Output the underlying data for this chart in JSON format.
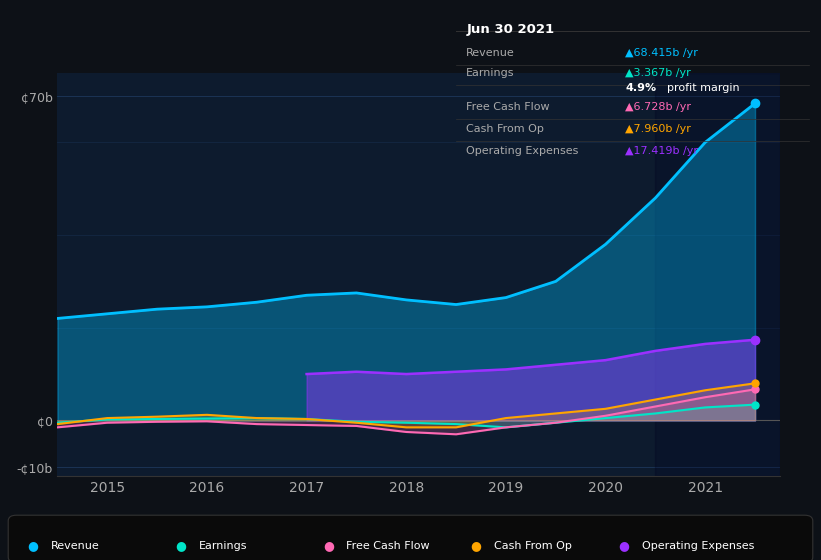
{
  "bg_color": "#0d1117",
  "plot_bg_color": "#0d1b2e",
  "grid_color": "#1e3a5f",
  "title_box": {
    "date": "Jun 30 2021",
    "rows": [
      {
        "label": "Revenue",
        "value": "▲68.415b /yr",
        "color": "#00bfff"
      },
      {
        "label": "Earnings",
        "value": "▲3.367b /yr",
        "color": "#00e5c8"
      },
      {
        "label": "",
        "value": "4.9% profit margin",
        "color": "#ffffff"
      },
      {
        "label": "Free Cash Flow",
        "value": "▲6.728b /yr",
        "color": "#ff69b4"
      },
      {
        "label": "Cash From Op",
        "value": "▲7.960b /yr",
        "color": "#ffa500"
      },
      {
        "label": "Operating Expenses",
        "value": "▲17.419b /yr",
        "color": "#9b30ff"
      }
    ]
  },
  "years": [
    2014.5,
    2015.0,
    2015.5,
    2016.0,
    2016.5,
    2017.0,
    2017.5,
    2018.0,
    2018.5,
    2019.0,
    2019.5,
    2020.0,
    2020.5,
    2021.0,
    2021.5
  ],
  "revenue": [
    22,
    23,
    24,
    24.5,
    25.5,
    27,
    27.5,
    26,
    25,
    26.5,
    30,
    38,
    48,
    60,
    68.4
  ],
  "earnings": [
    -0.5,
    0.2,
    0.3,
    0.4,
    0.5,
    0.3,
    -0.3,
    -0.5,
    -0.8,
    -1.5,
    -0.5,
    0.5,
    1.5,
    2.8,
    3.4
  ],
  "free_cash_flow": [
    -1.5,
    -0.5,
    -0.3,
    -0.2,
    -0.8,
    -1.0,
    -1.2,
    -2.5,
    -3.0,
    -1.5,
    -0.5,
    1.0,
    3.0,
    5.0,
    6.7
  ],
  "cash_from_op": [
    -0.8,
    0.5,
    0.8,
    1.2,
    0.5,
    0.3,
    -0.5,
    -1.5,
    -1.5,
    0.5,
    1.5,
    2.5,
    4.5,
    6.5,
    8.0
  ],
  "op_expenses": [
    0,
    0,
    0,
    0,
    0,
    10,
    10.5,
    10.0,
    10.5,
    11,
    12,
    13,
    15,
    16.5,
    17.4
  ],
  "revenue_color": "#00bfff",
  "earnings_color": "#00e5c8",
  "free_cash_flow_color": "#ff69b4",
  "cash_from_op_color": "#ffa500",
  "op_expenses_color": "#9b30ff",
  "ylim": [
    -12,
    75
  ],
  "yticks": [
    -10,
    0,
    70
  ],
  "ytick_labels": [
    "-¢10b",
    "¢0",
    "¢70b"
  ],
  "xticks": [
    2015,
    2016,
    2017,
    2018,
    2019,
    2020,
    2021
  ],
  "xlabel_color": "#aaaaaa",
  "legend_items": [
    {
      "label": "Revenue",
      "color": "#00bfff"
    },
    {
      "label": "Earnings",
      "color": "#00e5c8"
    },
    {
      "label": "Free Cash Flow",
      "color": "#ff69b4"
    },
    {
      "label": "Cash From Op",
      "color": "#ffa500"
    },
    {
      "label": "Operating Expenses",
      "color": "#9b30ff"
    }
  ]
}
